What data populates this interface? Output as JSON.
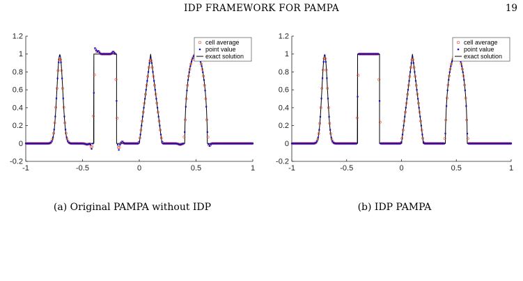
{
  "header": {
    "title": "IDP FRAMEWORK FOR PAMPA",
    "page_number": "19"
  },
  "chart_data": [
    {
      "type": "scatter",
      "caption": "(a) Original PAMPA without IDP",
      "xlim": [
        -1,
        1
      ],
      "ylim": [
        -0.2,
        1.2
      ],
      "x_ticks": [
        "-1",
        "-0.5",
        "0",
        "0.5",
        "1"
      ],
      "y_ticks": [
        "-0.2",
        "0",
        "0.2",
        "0.4",
        "0.6",
        "0.8",
        "1",
        "1.2"
      ],
      "grid": false,
      "legend_position": "top-right",
      "legend": [
        "cell average",
        "point value",
        "exact solution"
      ],
      "series": [
        {
          "name": "cell average",
          "marker": "red-circle",
          "color": "#e8442a",
          "description_points": [
            [
              -0.7,
              0.93
            ],
            [
              -0.4,
              1.06
            ],
            [
              -0.3,
              1.0
            ],
            [
              -0.2,
              0.97
            ],
            [
              0.1,
              0.93
            ],
            [
              0.5,
              0.99
            ]
          ]
        },
        {
          "name": "point value",
          "marker": "blue-dot",
          "color": "#1010c8",
          "description_points": [
            [
              -0.7,
              0.97
            ],
            [
              -0.4,
              -0.05
            ],
            [
              -0.2,
              -0.05
            ],
            [
              0.1,
              0.97
            ],
            [
              0.5,
              1.0
            ]
          ]
        },
        {
          "name": "exact solution",
          "marker": "line",
          "color": "#000000",
          "segments": [
            [
              -0.8,
              0
            ],
            [
              -0.7,
              1
            ],
            [
              -0.6,
              0
            ],
            [
              -0.4,
              0
            ],
            [
              -0.4,
              1
            ],
            [
              -0.2,
              1
            ],
            [
              -0.2,
              0
            ],
            [
              0.0,
              0
            ],
            [
              0.1,
              1
            ],
            [
              0.2,
              0
            ],
            [
              0.4,
              0
            ],
            [
              0.5,
              1
            ],
            [
              0.6,
              0
            ]
          ]
        }
      ],
      "oscillation": true
    },
    {
      "type": "scatter",
      "caption": "(b) IDP PAMPA",
      "xlim": [
        -1,
        1
      ],
      "ylim": [
        -0.2,
        1.2
      ],
      "x_ticks": [
        "-1",
        "-0.5",
        "0",
        "0.5",
        "1"
      ],
      "y_ticks": [
        "-0.2",
        "0",
        "0.2",
        "0.4",
        "0.6",
        "0.8",
        "1",
        "1.2"
      ],
      "grid": false,
      "legend_position": "top-right",
      "legend": [
        "cell average",
        "point value",
        "exact solution"
      ],
      "series": [
        {
          "name": "cell average",
          "marker": "red-circle",
          "color": "#e8442a"
        },
        {
          "name": "point value",
          "marker": "blue-dot",
          "color": "#1010c8"
        },
        {
          "name": "exact solution",
          "marker": "line",
          "color": "#000000"
        }
      ],
      "oscillation": false
    }
  ]
}
